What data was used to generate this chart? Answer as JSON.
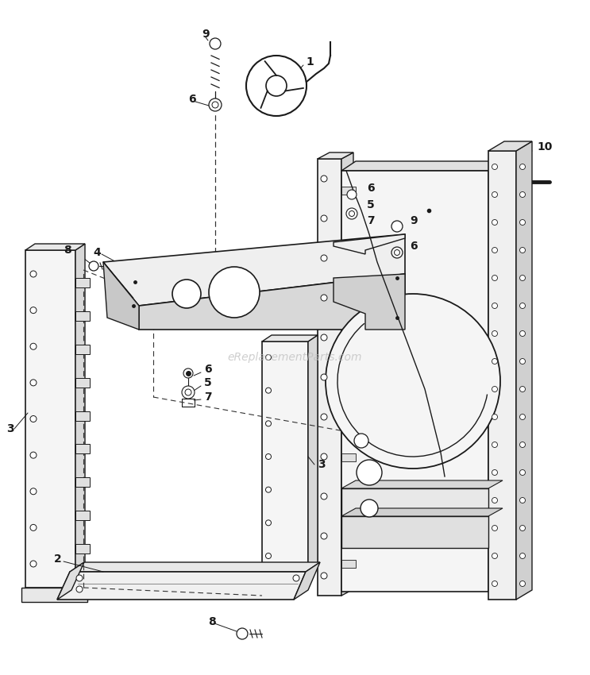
{
  "bg_color": "#ffffff",
  "line_color": "#1a1a1a",
  "watermark": "eReplacementParts.com",
  "watermark_color": "#bbbbbb",
  "figsize": [
    7.43,
    8.5
  ],
  "dpi": 100
}
